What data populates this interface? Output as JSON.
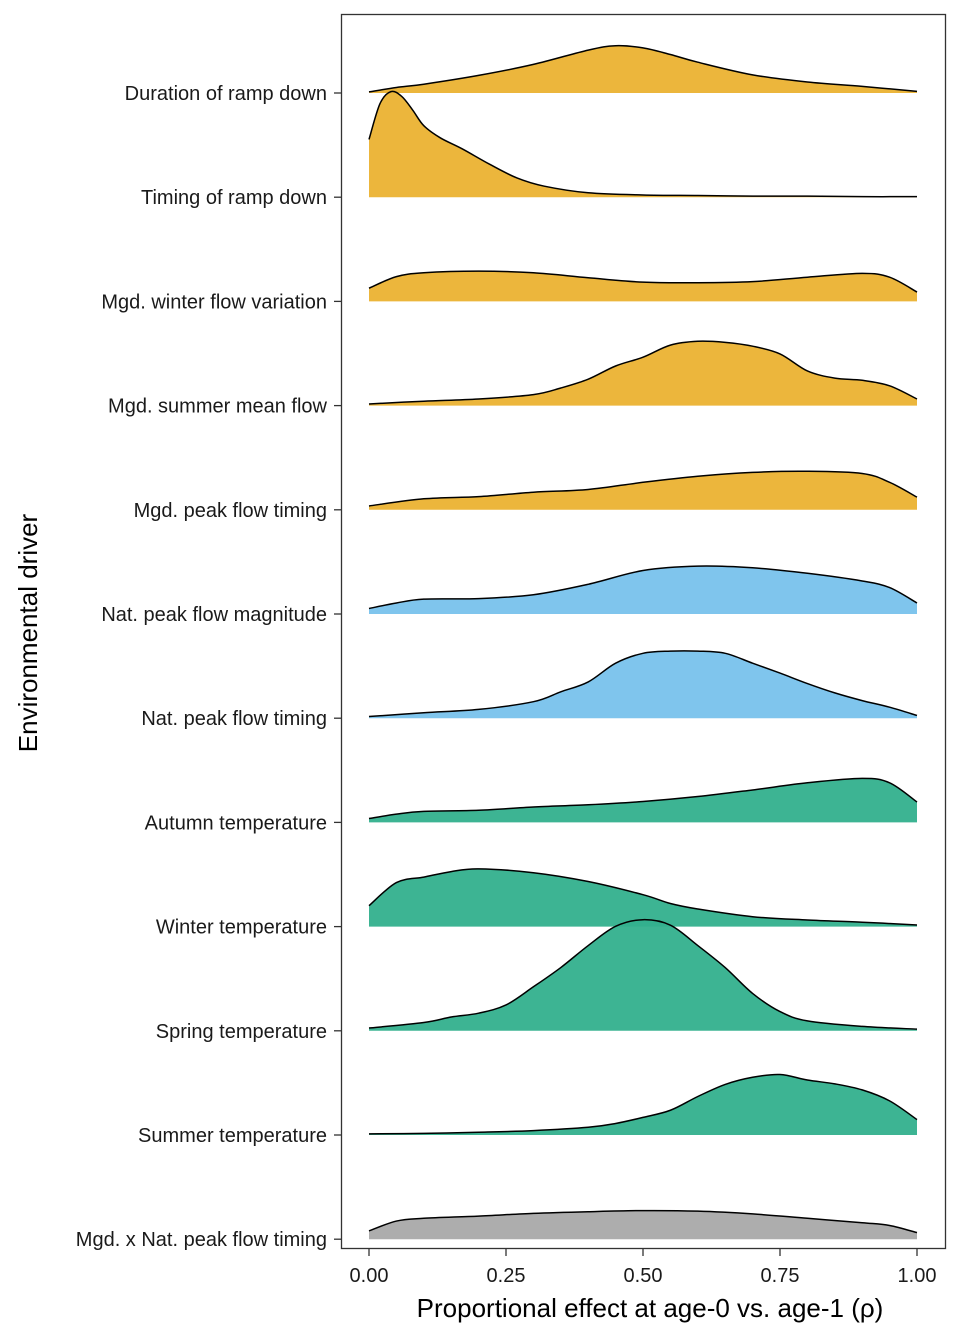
{
  "chart_data": {
    "type": "ridgeline",
    "xlabel": "Proportional effect at age-0 vs. age-1 (ρ)",
    "ylabel": "Environmental driver",
    "xlim": [
      0,
      1
    ],
    "xticks": [
      {
        "value": 0.0,
        "label": "0.00"
      },
      {
        "value": 0.25,
        "label": "0.25"
      },
      {
        "value": 0.5,
        "label": "0.50"
      },
      {
        "value": 0.75,
        "label": "0.75"
      },
      {
        "value": 1.0,
        "label": "1.00"
      }
    ],
    "series": [
      {
        "name": "Duration of ramp down",
        "group": "managed flow",
        "color": "#EBB232",
        "x": [
          0,
          0.05,
          0.1,
          0.2,
          0.3,
          0.4,
          0.45,
          0.5,
          0.55,
          0.6,
          0.7,
          0.8,
          0.9,
          1.0
        ],
        "density": [
          0.02,
          0.1,
          0.16,
          0.32,
          0.52,
          0.78,
          0.86,
          0.82,
          0.7,
          0.56,
          0.33,
          0.2,
          0.12,
          0.03
        ]
      },
      {
        "name": "Timing of ramp down",
        "group": "managed flow",
        "color": "#EBB232",
        "x": [
          0,
          0.02,
          0.04,
          0.06,
          0.08,
          0.1,
          0.13,
          0.17,
          0.22,
          0.27,
          0.32,
          0.4,
          0.5,
          0.6,
          0.7,
          0.8,
          0.9,
          1.0
        ],
        "density": [
          1.05,
          1.7,
          1.92,
          1.83,
          1.58,
          1.3,
          1.08,
          0.88,
          0.6,
          0.35,
          0.2,
          0.08,
          0.04,
          0.03,
          0.02,
          0.02,
          0.01,
          0.01
        ]
      },
      {
        "name": "Mgd. winter flow variation",
        "group": "managed flow",
        "color": "#EBB232",
        "x": [
          0,
          0.05,
          0.1,
          0.2,
          0.3,
          0.4,
          0.5,
          0.6,
          0.7,
          0.8,
          0.9,
          0.95,
          1.0
        ],
        "density": [
          0.24,
          0.45,
          0.52,
          0.55,
          0.52,
          0.43,
          0.35,
          0.34,
          0.36,
          0.44,
          0.51,
          0.44,
          0.17
        ]
      },
      {
        "name": "Mgd. summer mean flow",
        "group": "managed flow",
        "color": "#EBB232",
        "x": [
          0,
          0.1,
          0.2,
          0.3,
          0.35,
          0.4,
          0.45,
          0.5,
          0.55,
          0.6,
          0.65,
          0.7,
          0.75,
          0.8,
          0.85,
          0.9,
          0.95,
          1.0
        ],
        "density": [
          0.03,
          0.08,
          0.12,
          0.2,
          0.32,
          0.48,
          0.72,
          0.88,
          1.1,
          1.17,
          1.15,
          1.08,
          0.94,
          0.63,
          0.5,
          0.46,
          0.36,
          0.12
        ]
      },
      {
        "name": "Mgd. peak flow timing",
        "group": "managed flow",
        "color": "#EBB232",
        "x": [
          0,
          0.1,
          0.2,
          0.3,
          0.4,
          0.5,
          0.6,
          0.7,
          0.8,
          0.9,
          0.95,
          1.0
        ],
        "density": [
          0.07,
          0.2,
          0.24,
          0.32,
          0.37,
          0.5,
          0.61,
          0.68,
          0.7,
          0.66,
          0.5,
          0.23
        ]
      },
      {
        "name": "Nat. peak flow magnitude",
        "group": "natural flow",
        "color": "#78C2EC",
        "x": [
          0,
          0.05,
          0.1,
          0.2,
          0.3,
          0.4,
          0.5,
          0.6,
          0.7,
          0.8,
          0.9,
          0.95,
          1.0
        ],
        "density": [
          0.1,
          0.2,
          0.27,
          0.28,
          0.35,
          0.54,
          0.79,
          0.87,
          0.84,
          0.74,
          0.6,
          0.48,
          0.2
        ]
      },
      {
        "name": "Nat. peak flow timing",
        "group": "natural flow",
        "color": "#78C2EC",
        "x": [
          0,
          0.1,
          0.2,
          0.3,
          0.35,
          0.4,
          0.45,
          0.5,
          0.55,
          0.6,
          0.65,
          0.7,
          0.75,
          0.8,
          0.85,
          0.9,
          0.95,
          1.0
        ],
        "density": [
          0.03,
          0.1,
          0.16,
          0.3,
          0.48,
          0.66,
          1.0,
          1.18,
          1.22,
          1.22,
          1.18,
          1.0,
          0.82,
          0.63,
          0.46,
          0.32,
          0.2,
          0.05
        ]
      },
      {
        "name": "Autumn temperature",
        "group": "temperature",
        "color": "#33B08D",
        "x": [
          0,
          0.05,
          0.1,
          0.2,
          0.3,
          0.4,
          0.5,
          0.6,
          0.7,
          0.8,
          0.9,
          0.95,
          1.0
        ],
        "density": [
          0.07,
          0.15,
          0.2,
          0.22,
          0.28,
          0.32,
          0.38,
          0.47,
          0.59,
          0.72,
          0.8,
          0.72,
          0.37
        ]
      },
      {
        "name": "Winter temperature",
        "group": "temperature",
        "color": "#33B08D",
        "x": [
          0,
          0.05,
          0.1,
          0.15,
          0.2,
          0.3,
          0.4,
          0.5,
          0.55,
          0.6,
          0.7,
          0.8,
          0.9,
          1.0
        ],
        "density": [
          0.38,
          0.8,
          0.9,
          1.0,
          1.05,
          0.98,
          0.82,
          0.58,
          0.42,
          0.32,
          0.18,
          0.12,
          0.08,
          0.03
        ]
      },
      {
        "name": "Spring temperature",
        "group": "temperature",
        "color": "#33B08D",
        "x": [
          0,
          0.1,
          0.15,
          0.2,
          0.25,
          0.3,
          0.35,
          0.4,
          0.45,
          0.5,
          0.55,
          0.6,
          0.65,
          0.7,
          0.75,
          0.8,
          0.9,
          1.0
        ],
        "density": [
          0.05,
          0.15,
          0.25,
          0.32,
          0.47,
          0.8,
          1.15,
          1.55,
          1.9,
          2.02,
          1.92,
          1.55,
          1.15,
          0.68,
          0.35,
          0.18,
          0.08,
          0.03
        ]
      },
      {
        "name": "Summer temperature",
        "group": "temperature",
        "color": "#33B08D",
        "x": [
          0,
          0.1,
          0.2,
          0.3,
          0.4,
          0.45,
          0.5,
          0.55,
          0.6,
          0.65,
          0.7,
          0.75,
          0.8,
          0.85,
          0.9,
          0.95,
          1.0
        ],
        "density": [
          0.02,
          0.03,
          0.05,
          0.08,
          0.14,
          0.21,
          0.32,
          0.45,
          0.7,
          0.92,
          1.05,
          1.1,
          1.0,
          0.93,
          0.82,
          0.62,
          0.28
        ]
      },
      {
        "name": "Mgd. x Nat. peak flow timing",
        "group": "interaction",
        "color": "#A9A9A9",
        "x": [
          0,
          0.05,
          0.1,
          0.2,
          0.3,
          0.4,
          0.5,
          0.6,
          0.7,
          0.8,
          0.9,
          0.95,
          1.0
        ],
        "density": [
          0.15,
          0.33,
          0.38,
          0.42,
          0.47,
          0.5,
          0.52,
          0.51,
          0.46,
          0.38,
          0.3,
          0.25,
          0.12
        ]
      }
    ]
  }
}
